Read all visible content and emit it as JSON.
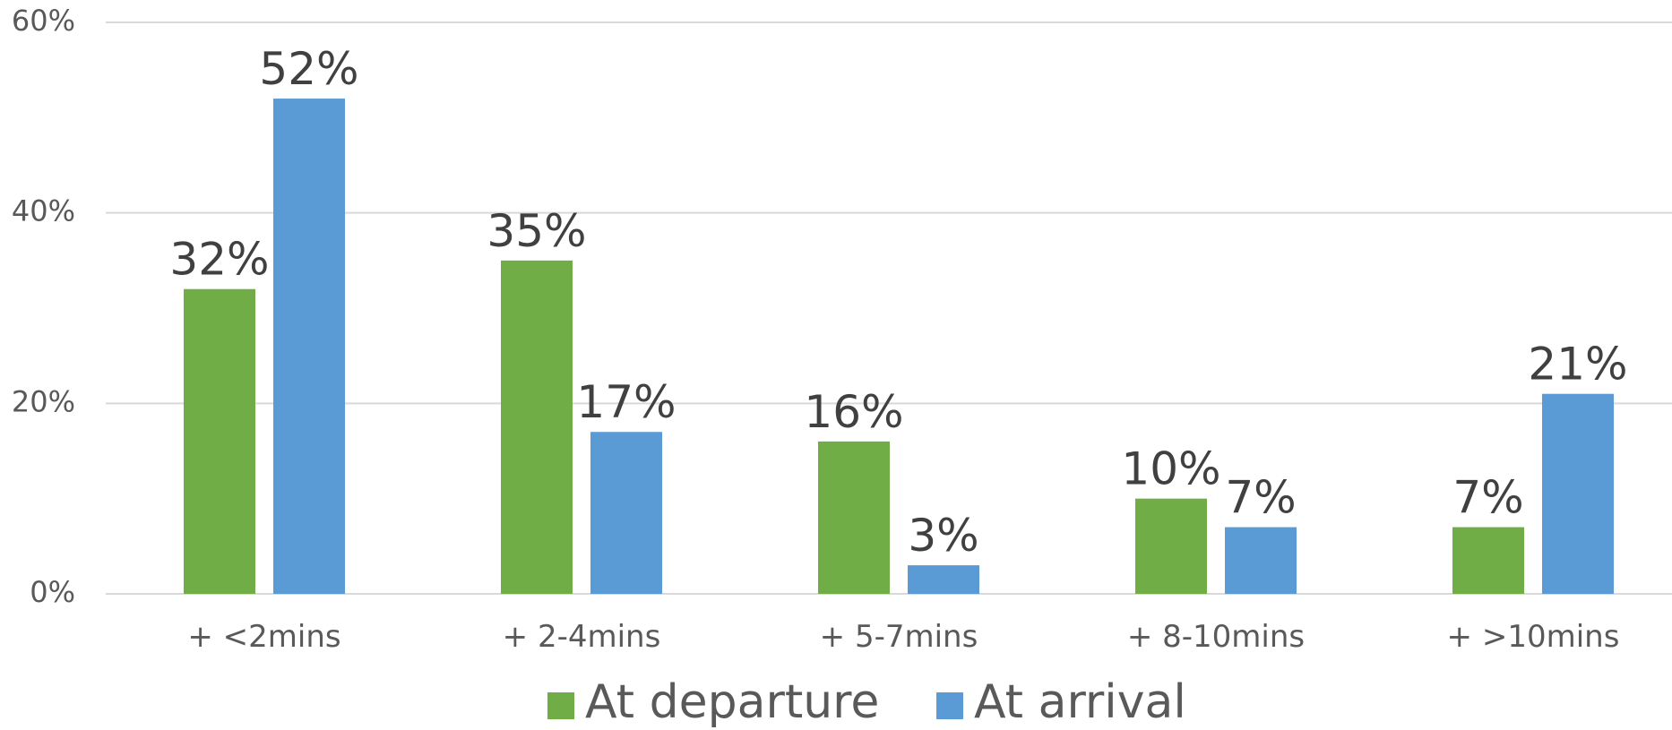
{
  "chart_data": {
    "type": "bar",
    "title": "",
    "xlabel": "",
    "ylabel": "",
    "categories": [
      "+ <2mins",
      "+ 2-4mins",
      "+ 5-7mins",
      "+ 8-10mins",
      "+ >10mins"
    ],
    "series": [
      {
        "name": "At departure",
        "color": "#70ad47",
        "values": [
          32,
          35,
          16,
          10,
          7
        ],
        "labels": [
          "32%",
          "35%",
          "16%",
          "10%",
          "7%"
        ]
      },
      {
        "name": "At arrival",
        "color": "#5b9bd5",
        "values": [
          52,
          17,
          3,
          7,
          21
        ],
        "labels": [
          "52%",
          "17%",
          "3%",
          "7%",
          "21%"
        ]
      }
    ],
    "ylim": [
      0,
      60
    ],
    "yticks": [
      0,
      20,
      40,
      60
    ],
    "ytick_labels": [
      "0%",
      "20%",
      "40%",
      "60%"
    ],
    "grid": true,
    "legend_position": "bottom"
  }
}
